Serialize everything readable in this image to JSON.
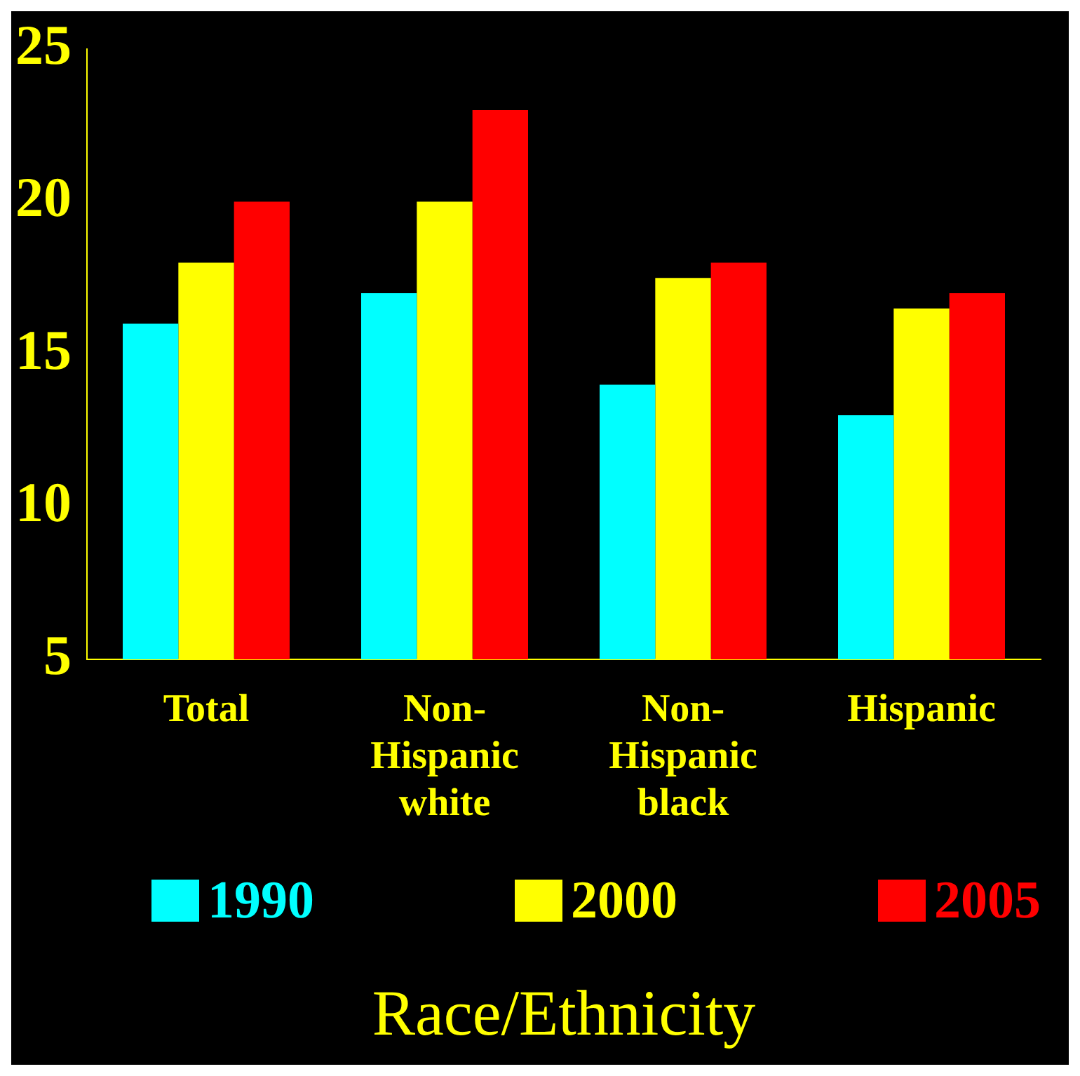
{
  "chart_data": {
    "type": "bar",
    "xlabel": "Race/Ethnicity",
    "categories": [
      "Total",
      "Non-Hispanic white",
      "Non-Hispanic black",
      "Hispanic"
    ],
    "series": [
      {
        "name": "1990",
        "color": "#00ffff",
        "values": [
          16,
          17,
          14,
          13
        ]
      },
      {
        "name": "2000",
        "color": "#ffff00",
        "values": [
          18,
          20,
          17.5,
          16.5
        ]
      },
      {
        "name": "2005",
        "color": "#ff0000",
        "values": [
          20,
          23,
          18,
          17
        ]
      }
    ],
    "ylim": [
      5,
      25
    ],
    "yticks": [
      5,
      10,
      15,
      20,
      25
    ],
    "grid": false,
    "legend": "bottom"
  }
}
